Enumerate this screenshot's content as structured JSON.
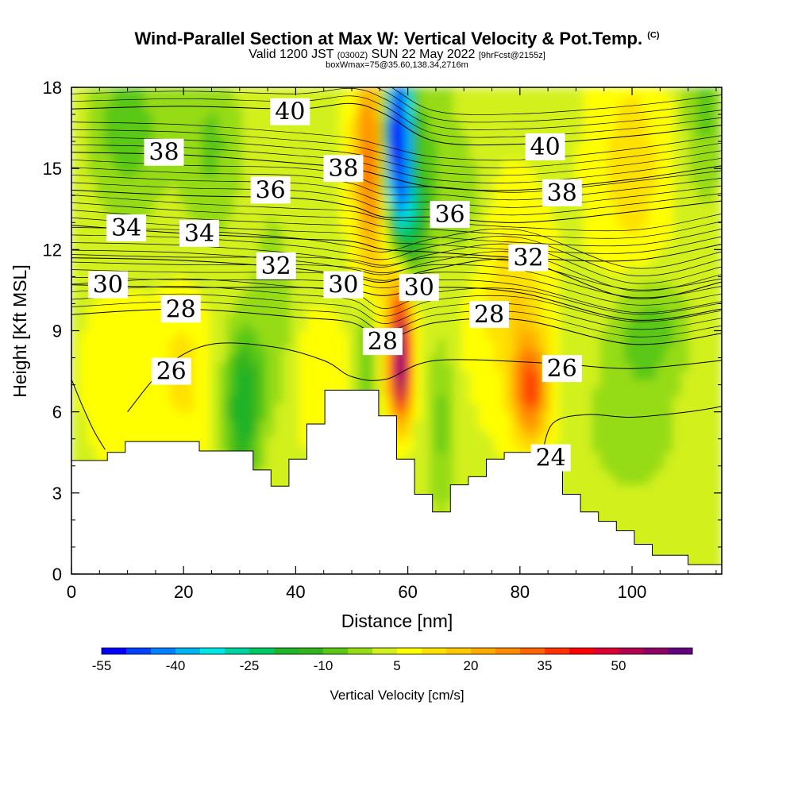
{
  "header": {
    "title": "Wind-Parallel Section at Max W: Vertical Velocity & Pot.Temp.",
    "copyright": "(C)",
    "valid_prefix": "Valid 1200 JST",
    "valid_utc": "(0300Z)",
    "valid_date": "SUN 22 May 2022",
    "forecast_info": "[9hrFcst@2155z]",
    "box_info": "boxWmax=75@35.60,138.34,2716m"
  },
  "chart_data": {
    "type": "heatmap",
    "xlabel": "Distance [nm]",
    "ylabel": "Height [Kft MSL]",
    "xlim": [
      0,
      116
    ],
    "ylim": [
      0,
      18
    ],
    "x_ticks": [
      "0",
      "20",
      "40",
      "60",
      "80",
      "100"
    ],
    "x_tick_values": [
      0,
      20,
      40,
      60,
      80,
      100
    ],
    "y_ticks": [
      "0",
      "3",
      "6",
      "9",
      "12",
      "15",
      "18"
    ],
    "y_tick_values": [
      0,
      3,
      6,
      9,
      12,
      15,
      18
    ],
    "colorbar": {
      "label": "Vertical Velocity [cm/s]",
      "tick_labels": [
        "-55",
        "-40",
        "-25",
        "-10",
        "5",
        "20",
        "35",
        "50"
      ],
      "tick_values": [
        -55,
        -40,
        -25,
        -10,
        5,
        20,
        35,
        50
      ],
      "colors": [
        "#0000ff",
        "#0040ff",
        "#0080ff",
        "#00b4f0",
        "#00e6e6",
        "#00d2a0",
        "#00c864",
        "#1eb428",
        "#32b41e",
        "#5ac814",
        "#96dc14",
        "#d2f01e",
        "#ffff00",
        "#ffe100",
        "#ffc800",
        "#ffaa00",
        "#ff8c00",
        "#ff6400",
        "#ff3200",
        "#ff0000",
        "#dc0032",
        "#b40050",
        "#8c0064",
        "#64007d"
      ]
    },
    "terrain": {
      "distance_nm": [
        0,
        6.4,
        6.4,
        9.6,
        9.6,
        22.8,
        22.8,
        32.4,
        32.4,
        35.6,
        35.6,
        38.8,
        38.8,
        42,
        42,
        45.2,
        45.2,
        48.4,
        48.4,
        54.8,
        54.8,
        58,
        58,
        61.2,
        61.2,
        64.4,
        64.4,
        67.6,
        67.6,
        70.8,
        70.8,
        74,
        74,
        77.2,
        77.2,
        80.4,
        80.4,
        87.6,
        87.6,
        90.8,
        90.8,
        94,
        94,
        97.2,
        97.2,
        100.4,
        100.4,
        103.6,
        103.6,
        110,
        110,
        116
      ],
      "height_kft": [
        4.2,
        4.2,
        4.5,
        4.5,
        4.9,
        4.9,
        4.55,
        4.55,
        3.85,
        3.85,
        3.25,
        3.25,
        4.25,
        4.25,
        5.55,
        5.55,
        6.8,
        6.8,
        6.8,
        6.8,
        5.85,
        5.85,
        4.25,
        4.25,
        2.95,
        2.95,
        2.3,
        2.3,
        3.3,
        3.3,
        3.6,
        3.6,
        4.25,
        4.25,
        4.5,
        4.5,
        4.5,
        4.5,
        2.95,
        2.95,
        2.3,
        2.3,
        1.95,
        1.95,
        1.6,
        1.6,
        1.1,
        1.1,
        0.7,
        0.7,
        0.35,
        0.35
      ]
    },
    "theta_contours_label_values": [
      "40",
      "38",
      "38",
      "36",
      "34",
      "34",
      "36",
      "40",
      "38",
      "32",
      "30",
      "28",
      "30",
      "30",
      "32",
      "28",
      "28",
      "26",
      "26",
      "24"
    ],
    "theta_contours": [
      {
        "label": "40",
        "x": 39,
        "y": 17.1
      },
      {
        "label": "38",
        "x": 16.5,
        "y": 15.6
      },
      {
        "label": "38",
        "x": 48.5,
        "y": 15
      },
      {
        "label": "36",
        "x": 35.5,
        "y": 14.2
      },
      {
        "label": "34",
        "x": 9.8,
        "y": 12.8
      },
      {
        "label": "34",
        "x": 22.8,
        "y": 12.6
      },
      {
        "label": "36",
        "x": 67.5,
        "y": 13.3
      },
      {
        "label": "40",
        "x": 84.5,
        "y": 15.8
      },
      {
        "label": "38",
        "x": 87.5,
        "y": 14.1
      },
      {
        "label": "32",
        "x": 36.5,
        "y": 11.4
      },
      {
        "label": "30",
        "x": 6.5,
        "y": 10.7
      },
      {
        "label": "28",
        "x": 19.5,
        "y": 9.8
      },
      {
        "label": "30",
        "x": 48.5,
        "y": 10.7
      },
      {
        "label": "30",
        "x": 62,
        "y": 10.6
      },
      {
        "label": "32",
        "x": 81.5,
        "y": 11.7
      },
      {
        "label": "28",
        "x": 74.5,
        "y": 9.6
      },
      {
        "label": "28",
        "x": 55.5,
        "y": 8.6
      },
      {
        "label": "26",
        "x": 17.8,
        "y": 7.5
      },
      {
        "label": "26",
        "x": 87.5,
        "y": 7.6
      },
      {
        "label": "24",
        "x": 85.5,
        "y": 4.3
      }
    ],
    "theta_isolines": [
      {
        "value": 40,
        "x": [
          0,
          20,
          40,
          50,
          56,
          65,
          80,
          100,
          116
        ],
        "y": [
          17.2,
          17.3,
          17.2,
          17.4,
          17.0,
          16.0,
          15.9,
          16.2,
          16.6
        ]
      },
      {
        "value": 38,
        "x": [
          0,
          20,
          40,
          50,
          56,
          65,
          80,
          100,
          116
        ],
        "y": [
          15.6,
          15.5,
          15.2,
          15.0,
          14.7,
          14.3,
          14.2,
          14.6,
          15.1
        ]
      },
      {
        "value": 36,
        "x": [
          0,
          20,
          40,
          50,
          56,
          65,
          80,
          100,
          116
        ],
        "y": [
          14.2,
          14.0,
          13.9,
          13.6,
          13.2,
          13.2,
          13.0,
          13.4,
          13.8
        ]
      },
      {
        "value": 34,
        "x": [
          0,
          20,
          40,
          50,
          56,
          65,
          80,
          100,
          116
        ],
        "y": [
          12.9,
          12.6,
          12.4,
          12.3,
          12.0,
          11.9,
          11.7,
          11.6,
          12.2
        ]
      },
      {
        "value": 32,
        "x": [
          0,
          20,
          40,
          50,
          56,
          65,
          80,
          100,
          116
        ],
        "y": [
          11.7,
          11.6,
          11.3,
          11.0,
          10.8,
          11.3,
          11.6,
          10.2,
          10.8
        ]
      },
      {
        "value": 30,
        "x": [
          0,
          20,
          40,
          50,
          56,
          65,
          80,
          100,
          116
        ],
        "y": [
          10.7,
          10.6,
          10.6,
          10.5,
          10.3,
          10.6,
          10.4,
          9.4,
          9.8
        ]
      },
      {
        "value": 28,
        "x": [
          0,
          20,
          40,
          50,
          56,
          65,
          80,
          100,
          116
        ],
        "y": [
          9.6,
          9.8,
          9.5,
          9.3,
          8.7,
          9.3,
          9.4,
          8.5,
          8.9
        ]
      },
      {
        "value": 26,
        "x": [
          10,
          17,
          25,
          36,
          45,
          50,
          56,
          65,
          85,
          100,
          116
        ],
        "y": [
          6.0,
          7.7,
          8.5,
          8.4,
          7.9,
          7.3,
          7.2,
          7.9,
          7.8,
          7.6,
          7.9
        ]
      },
      {
        "value": 24,
        "x": [
          84,
          86,
          92,
          100,
          110,
          116
        ],
        "y": [
          4.5,
          5.6,
          5.9,
          5.8,
          6.0,
          6.2
        ]
      },
      {
        "value": 24,
        "x": [
          0,
          2,
          4,
          6
        ],
        "y": [
          7.2,
          6.2,
          5.3,
          4.6
        ]
      }
    ]
  }
}
